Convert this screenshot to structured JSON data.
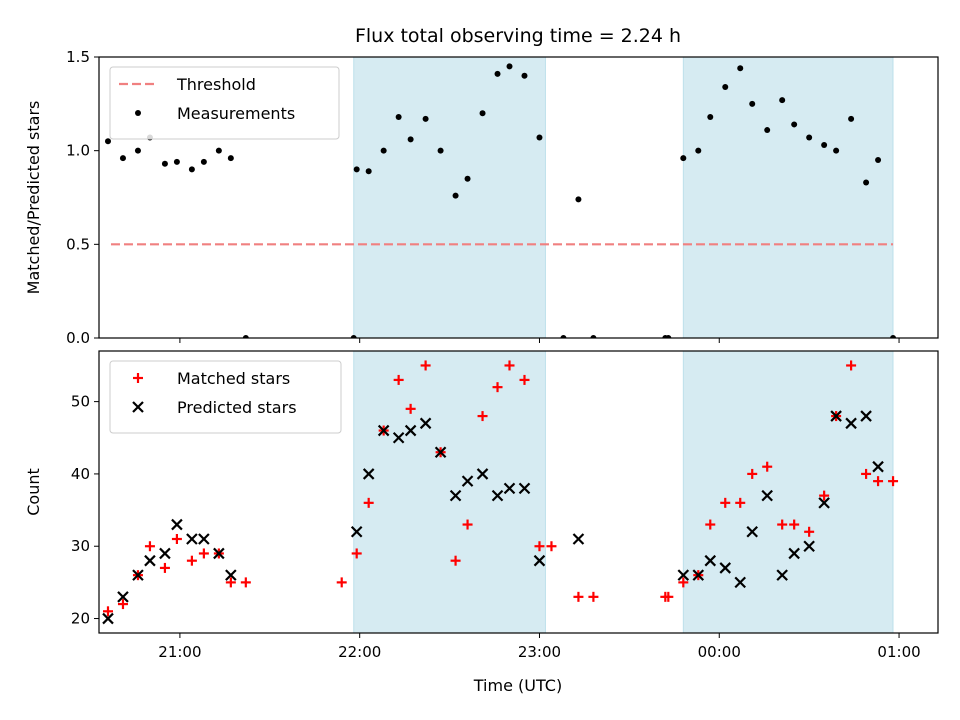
{
  "chart_data": {
    "title": "Flux total observing time = 2.24 h",
    "xlabel": "Time (UTC)",
    "x_ticks": [
      {
        "t": 1260,
        "label": "21:00"
      },
      {
        "t": 1320,
        "label": "22:00"
      },
      {
        "t": 1380,
        "label": "23:00"
      },
      {
        "t": 1440,
        "label": "00:00"
      },
      {
        "t": 1500,
        "label": "01:00"
      }
    ],
    "xlim": [
      "20:33",
      "01:13"
    ],
    "shaded_spans": [
      {
        "start": "21:58",
        "end": "23:02",
        "color": "#add8e6"
      },
      {
        "start": "23:48",
        "end": "00:58",
        "color": "#add8e6"
      }
    ],
    "panels": [
      {
        "type": "scatter",
        "ylabel": "Matched/Predicted stars",
        "ylim": [
          0,
          1.5
        ],
        "yticks": [
          0,
          0.5,
          1.0,
          1.5
        ],
        "ytick_labels": [
          "0.0",
          "0.5",
          "1.0",
          "1.5"
        ],
        "legend_position": "upper-left",
        "threshold": {
          "name": "Threshold",
          "value": 0.5,
          "x_start": "20:37",
          "x_end": "00:58",
          "color": "#f08080"
        },
        "series": [
          {
            "name": "Measurements",
            "marker": "dot",
            "color": "#000000",
            "points": [
              [
                "20:36",
                1.05
              ],
              [
                "20:41",
                0.96
              ],
              [
                "20:46",
                1.0
              ],
              [
                "20:50",
                1.07
              ],
              [
                "20:55",
                0.93
              ],
              [
                "20:59",
                0.94
              ],
              [
                "21:04",
                0.9
              ],
              [
                "21:08",
                0.94
              ],
              [
                "21:13",
                1.0
              ],
              [
                "21:17",
                0.96
              ],
              [
                "21:22",
                0.0
              ],
              [
                "21:58",
                0.0
              ],
              [
                "21:59",
                0.9
              ],
              [
                "22:03",
                0.89
              ],
              [
                "22:08",
                1.0
              ],
              [
                "22:13",
                1.18
              ],
              [
                "22:17",
                1.06
              ],
              [
                "22:22",
                1.17
              ],
              [
                "22:27",
                1.0
              ],
              [
                "22:32",
                0.76
              ],
              [
                "22:36",
                0.85
              ],
              [
                "22:41",
                1.2
              ],
              [
                "22:46",
                1.41
              ],
              [
                "22:50",
                1.45
              ],
              [
                "22:55",
                1.4
              ],
              [
                "23:00",
                1.07
              ],
              [
                "23:08",
                0.0
              ],
              [
                "23:13",
                0.74
              ],
              [
                "23:18",
                0.0
              ],
              [
                "23:42",
                0.0
              ],
              [
                "23:43",
                0.0
              ],
              [
                "23:48",
                0.96
              ],
              [
                "23:53",
                1.0
              ],
              [
                "23:57",
                1.18
              ],
              [
                "00:02",
                1.34
              ],
              [
                "00:07",
                1.44
              ],
              [
                "00:11",
                1.25
              ],
              [
                "00:16",
                1.11
              ],
              [
                "00:21",
                1.27
              ],
              [
                "00:25",
                1.14
              ],
              [
                "00:30",
                1.07
              ],
              [
                "00:35",
                1.03
              ],
              [
                "00:39",
                1.0
              ],
              [
                "00:44",
                1.17
              ],
              [
                "00:49",
                0.83
              ],
              [
                "00:53",
                0.95
              ],
              [
                "00:58",
                0.0
              ]
            ]
          }
        ]
      },
      {
        "type": "scatter",
        "ylabel": "Count",
        "ylim": [
          18,
          57
        ],
        "yticks": [
          20,
          30,
          40,
          50
        ],
        "ytick_labels": [
          "20",
          "30",
          "40",
          "50"
        ],
        "legend_position": "upper-left",
        "series": [
          {
            "name": "Matched stars",
            "marker": "plus",
            "color": "#ff0000",
            "points": [
              [
                "20:36",
                21
              ],
              [
                "20:41",
                22
              ],
              [
                "20:46",
                26
              ],
              [
                "20:50",
                30
              ],
              [
                "20:55",
                27
              ],
              [
                "20:59",
                31
              ],
              [
                "21:04",
                28
              ],
              [
                "21:08",
                29
              ],
              [
                "21:13",
                29
              ],
              [
                "21:17",
                25
              ],
              [
                "21:22",
                25
              ],
              [
                "21:54",
                25
              ],
              [
                "21:59",
                29
              ],
              [
                "22:03",
                36
              ],
              [
                "22:08",
                46
              ],
              [
                "22:13",
                53
              ],
              [
                "22:17",
                49
              ],
              [
                "22:22",
                55
              ],
              [
                "22:27",
                43
              ],
              [
                "22:32",
                28
              ],
              [
                "22:36",
                33
              ],
              [
                "22:41",
                48
              ],
              [
                "22:46",
                52
              ],
              [
                "22:50",
                55
              ],
              [
                "22:55",
                53
              ],
              [
                "23:00",
                30
              ],
              [
                "23:04",
                30
              ],
              [
                "23:13",
                23
              ],
              [
                "23:18",
                23
              ],
              [
                "23:42",
                23
              ],
              [
                "23:43",
                23
              ],
              [
                "23:48",
                25
              ],
              [
                "23:53",
                26
              ],
              [
                "23:57",
                33
              ],
              [
                "00:02",
                36
              ],
              [
                "00:07",
                36
              ],
              [
                "00:11",
                40
              ],
              [
                "00:16",
                41
              ],
              [
                "00:21",
                33
              ],
              [
                "00:25",
                33
              ],
              [
                "00:30",
                32
              ],
              [
                "00:35",
                37
              ],
              [
                "00:39",
                48
              ],
              [
                "00:44",
                55
              ],
              [
                "00:49",
                40
              ],
              [
                "00:53",
                39
              ],
              [
                "00:58",
                39
              ]
            ]
          },
          {
            "name": "Predicted stars",
            "marker": "x",
            "color": "#000000",
            "points": [
              [
                "20:36",
                20
              ],
              [
                "20:41",
                23
              ],
              [
                "20:46",
                26
              ],
              [
                "20:50",
                28
              ],
              [
                "20:55",
                29
              ],
              [
                "20:59",
                33
              ],
              [
                "21:04",
                31
              ],
              [
                "21:08",
                31
              ],
              [
                "21:13",
                29
              ],
              [
                "21:17",
                26
              ],
              [
                "21:59",
                32
              ],
              [
                "22:03",
                40
              ],
              [
                "22:08",
                46
              ],
              [
                "22:13",
                45
              ],
              [
                "22:17",
                46
              ],
              [
                "22:22",
                47
              ],
              [
                "22:27",
                43
              ],
              [
                "22:32",
                37
              ],
              [
                "22:36",
                39
              ],
              [
                "22:41",
                40
              ],
              [
                "22:46",
                37
              ],
              [
                "22:50",
                38
              ],
              [
                "22:55",
                38
              ],
              [
                "23:00",
                28
              ],
              [
                "23:13",
                31
              ],
              [
                "23:48",
                26
              ],
              [
                "23:53",
                26
              ],
              [
                "23:57",
                28
              ],
              [
                "00:02",
                27
              ],
              [
                "00:07",
                25
              ],
              [
                "00:11",
                32
              ],
              [
                "00:16",
                37
              ],
              [
                "00:21",
                26
              ],
              [
                "00:25",
                29
              ],
              [
                "00:30",
                30
              ],
              [
                "00:35",
                36
              ],
              [
                "00:39",
                48
              ],
              [
                "00:44",
                47
              ],
              [
                "00:49",
                48
              ],
              [
                "00:53",
                41
              ]
            ]
          }
        ]
      }
    ]
  }
}
